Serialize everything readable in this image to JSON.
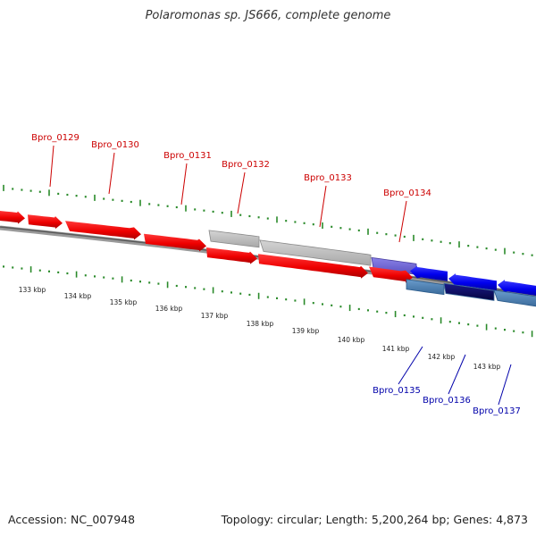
{
  "header": {
    "title": "Polaromonas sp. JS666, complete genome"
  },
  "footer": {
    "accession": "Accession: NC_007948",
    "summary": "Topology: circular; Length: 5,200,264 bp; Genes: 4,873"
  },
  "colors": {
    "forward_gene": "#ff0000",
    "forward_gene_dark": "#c00000",
    "reverse_gene": "#0000ff",
    "pseudo_gene": "#b4b4b4",
    "rna_gene": "#7066d8",
    "steelblue_gene": "#4a7fb3",
    "navy_gene": "#0a0a66",
    "upper_label": "#cc0000",
    "lower_label": "#0000aa",
    "tick": "#2a8a2a",
    "backbone": "#777777"
  },
  "scale_labels": [
    "133 kbp",
    "134 kbp",
    "135 kbp",
    "136 kbp",
    "137 kbp",
    "138 kbp",
    "139 kbp",
    "140 kbp",
    "141 kbp",
    "142 kbp",
    "143 kbp"
  ],
  "gene_labels_top": [
    "Bpro_0129",
    "Bpro_0130",
    "Bpro_0131",
    "Bpro_0132",
    "Bpro_0133",
    "Bpro_0134"
  ],
  "gene_labels_bottom": [
    "Bpro_0135",
    "Bpro_0136",
    "Bpro_0137"
  ]
}
